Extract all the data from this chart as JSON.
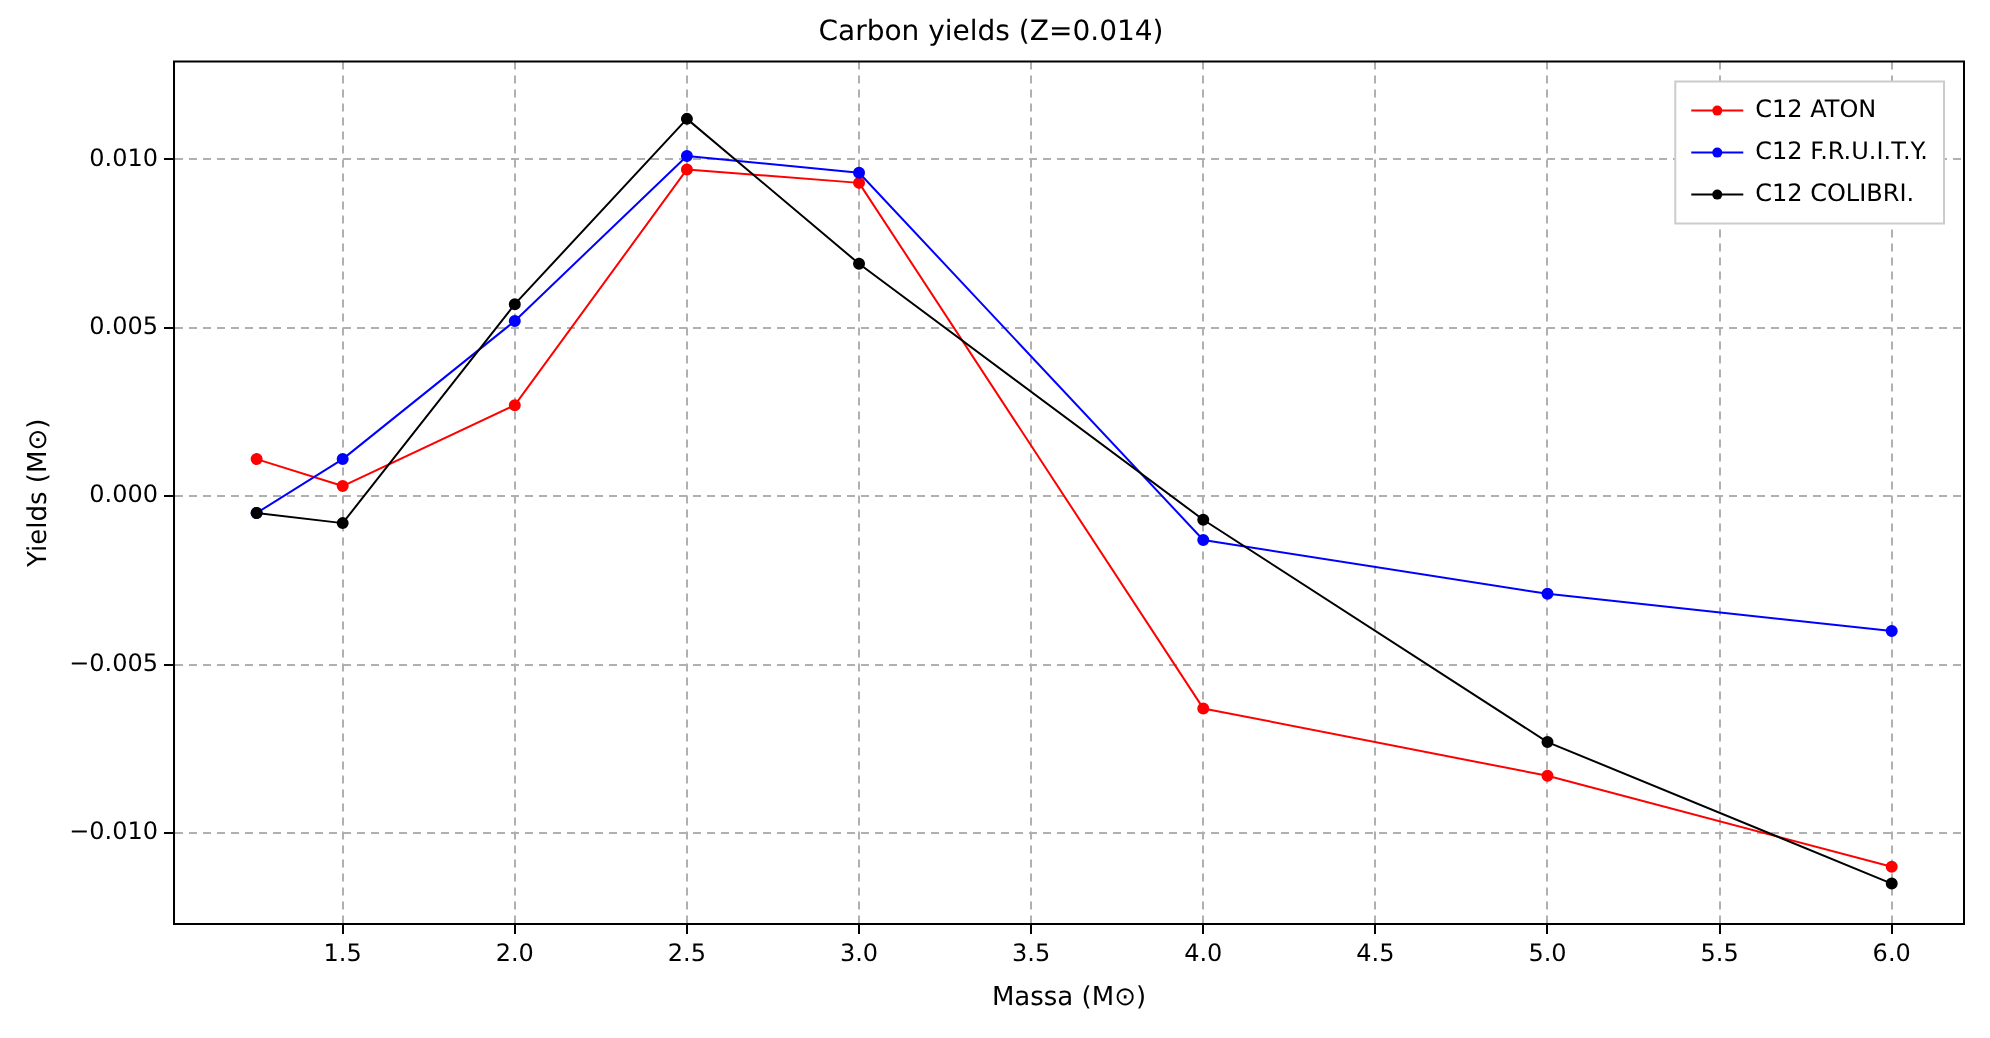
{
  "chart_data": {
    "type": "line",
    "title": "Carbon yields (Z=0.014)",
    "xlabel": "Massa (M⊙)",
    "ylabel": "Yields (M⊙)",
    "x": [
      1.25,
      1.5,
      2.0,
      2.5,
      3.0,
      4.0,
      5.0,
      6.0
    ],
    "series": [
      {
        "name": "C12 ATON",
        "color": "#ff0000",
        "values": [
          0.0011,
          0.0003,
          0.0027,
          0.0097,
          0.0093,
          -0.0063,
          -0.0083,
          -0.011
        ]
      },
      {
        "name": "C12 F.R.U.I.T.Y.",
        "color": "#0000ff",
        "values": [
          -0.0005,
          0.0011,
          0.0052,
          0.0101,
          0.0096,
          -0.0013,
          -0.0029,
          -0.004
        ]
      },
      {
        "name": "C12 COLIBRI.",
        "color": "#000000",
        "values": [
          -0.0005,
          -0.0008,
          0.0057,
          0.0112,
          0.0069,
          -0.0007,
          -0.0073,
          -0.0115
        ]
      }
    ],
    "xlim": [
      1.01,
      6.21
    ],
    "ylim": [
      -0.0127,
      0.0129
    ],
    "xticks": [
      {
        "value": 1.5,
        "label": "1.5"
      },
      {
        "value": 2.0,
        "label": "2.0"
      },
      {
        "value": 2.5,
        "label": "2.5"
      },
      {
        "value": 3.0,
        "label": "3.0"
      },
      {
        "value": 3.5,
        "label": "3.5"
      },
      {
        "value": 4.0,
        "label": "4.0"
      },
      {
        "value": 4.5,
        "label": "4.5"
      },
      {
        "value": 5.0,
        "label": "5.0"
      },
      {
        "value": 5.5,
        "label": "5.5"
      },
      {
        "value": 6.0,
        "label": "6.0"
      }
    ],
    "yticks": [
      {
        "value": -0.01,
        "label": "−0.010"
      },
      {
        "value": -0.005,
        "label": "−0.005"
      },
      {
        "value": 0,
        "label": "0.000"
      },
      {
        "value": 0.005,
        "label": "0.005"
      },
      {
        "value": 0.01,
        "label": "0.010"
      }
    ],
    "grid": true,
    "legend": "top right",
    "marker": "circle",
    "line_style": "solid"
  }
}
